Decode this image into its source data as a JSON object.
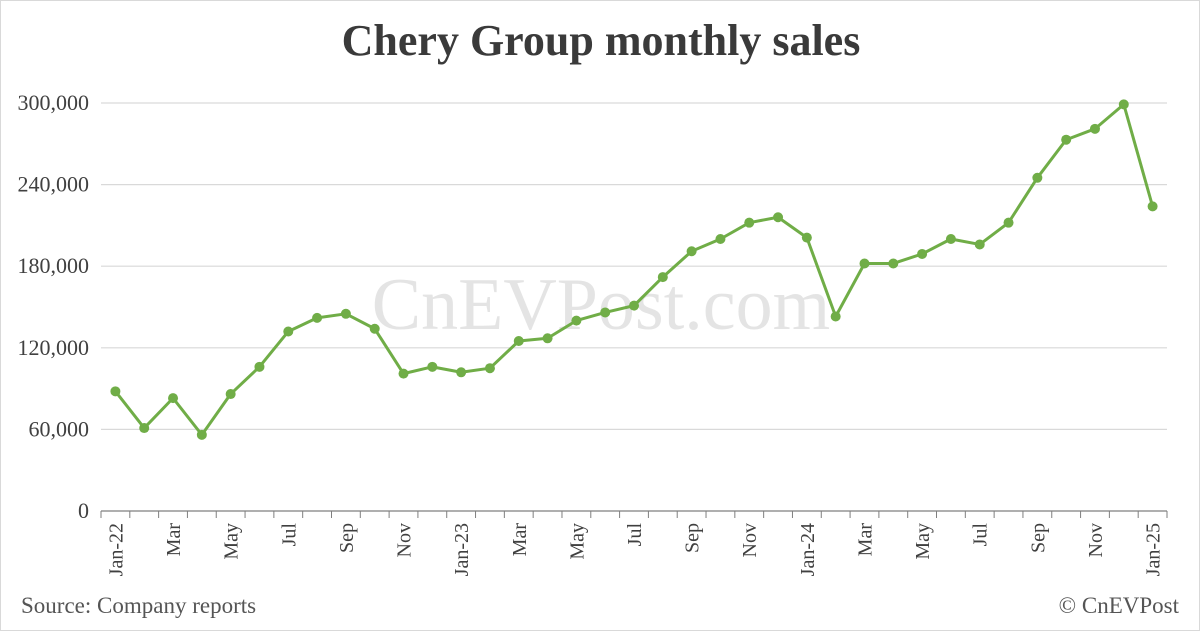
{
  "colors": {
    "series": "#70ad47",
    "grid": "#d9d9d9",
    "axis": "#7f7f7f",
    "title": "#3a3a3a",
    "watermark": "#cfcfcf"
  },
  "watermark": "CnEVPost.com",
  "source_note": "Source: Company reports",
  "copyright_note": "© CnEVPost",
  "chart_data": {
    "type": "line",
    "title": "Chery Group monthly sales",
    "xlabel": "",
    "ylabel": "",
    "ylim": [
      0,
      300000
    ],
    "yticks": [
      0,
      60000,
      120000,
      180000,
      240000,
      300000
    ],
    "ytick_labels": [
      "0",
      "60,000",
      "120,000",
      "180,000",
      "240,000",
      "300,000"
    ],
    "grid": true,
    "legend": "none",
    "x": [
      "Jan-22",
      "Feb-22",
      "Mar-22",
      "Apr-22",
      "May-22",
      "Jun-22",
      "Jul-22",
      "Aug-22",
      "Sep-22",
      "Oct-22",
      "Nov-22",
      "Dec-22",
      "Jan-23",
      "Feb-23",
      "Mar-23",
      "Apr-23",
      "May-23",
      "Jun-23",
      "Jul-23",
      "Aug-23",
      "Sep-23",
      "Oct-23",
      "Nov-23",
      "Dec-23",
      "Jan-24",
      "Feb-24",
      "Mar-24",
      "Apr-24",
      "May-24",
      "Jun-24",
      "Jul-24",
      "Aug-24",
      "Sep-24",
      "Oct-24",
      "Nov-24",
      "Dec-24",
      "Jan-25"
    ],
    "x_tick_labels": [
      {
        "index": 0,
        "label": "Jan-22"
      },
      {
        "index": 2,
        "label": "Mar"
      },
      {
        "index": 4,
        "label": "May"
      },
      {
        "index": 6,
        "label": "Jul"
      },
      {
        "index": 8,
        "label": "Sep"
      },
      {
        "index": 10,
        "label": "Nov"
      },
      {
        "index": 12,
        "label": "Jan-23"
      },
      {
        "index": 14,
        "label": "Mar"
      },
      {
        "index": 16,
        "label": "May"
      },
      {
        "index": 18,
        "label": "Jul"
      },
      {
        "index": 20,
        "label": "Sep"
      },
      {
        "index": 22,
        "label": "Nov"
      },
      {
        "index": 24,
        "label": "Jan-24"
      },
      {
        "index": 26,
        "label": "Mar"
      },
      {
        "index": 28,
        "label": "May"
      },
      {
        "index": 30,
        "label": "Jul"
      },
      {
        "index": 32,
        "label": "Sep"
      },
      {
        "index": 34,
        "label": "Nov"
      },
      {
        "index": 36,
        "label": "Jan-25"
      }
    ],
    "series": [
      {
        "values": [
          88000,
          61000,
          83000,
          56000,
          86000,
          106000,
          132000,
          142000,
          145000,
          134000,
          101000,
          106000,
          102000,
          105000,
          125000,
          127000,
          140000,
          146000,
          151000,
          172000,
          191000,
          200000,
          212000,
          216000,
          201000,
          143000,
          182000,
          182000,
          189000,
          200000,
          196000,
          212000,
          245000,
          273000,
          281000,
          299000,
          224000
        ]
      }
    ]
  }
}
